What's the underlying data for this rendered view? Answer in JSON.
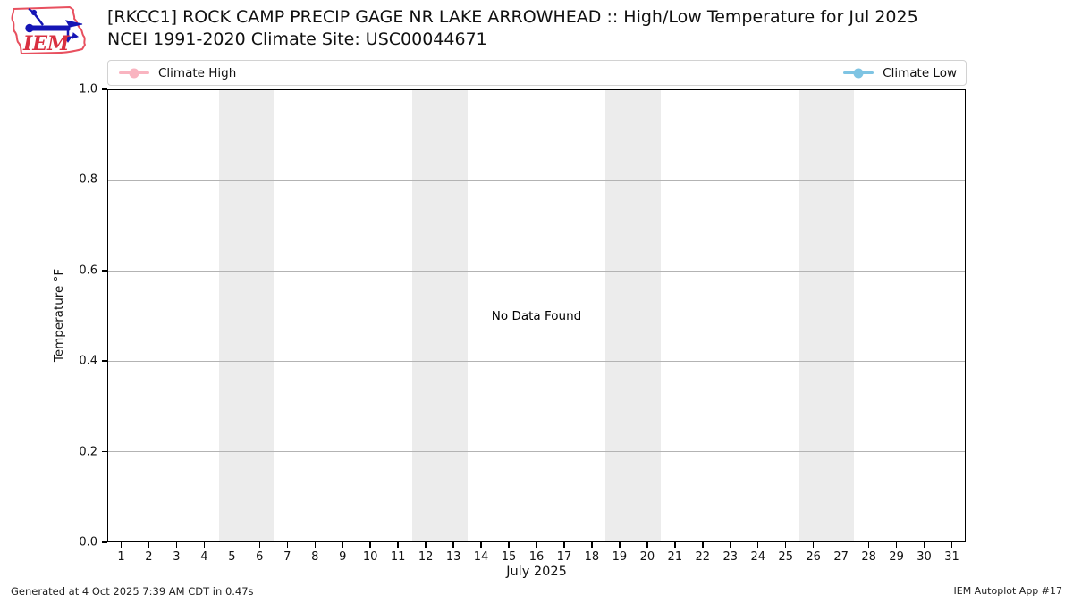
{
  "logo": {
    "text": "IEM"
  },
  "header": {
    "title_line1": "[RKCC1] ROCK CAMP PRECIP GAGE NR LAKE ARROWHEAD :: High/Low Temperature for Jul 2025",
    "title_line2": "NCEI 1991-2020 Climate Site: USC00044671"
  },
  "legend": {
    "entries": [
      {
        "label": "Climate High",
        "color": "#f9b4c0"
      },
      {
        "label": "Climate Low",
        "color": "#7ec4e3"
      }
    ]
  },
  "chart_data": {
    "type": "line",
    "title": "[RKCC1] ROCK CAMP PRECIP GAGE NR LAKE ARROWHEAD :: High/Low Temperature for Jul 2025",
    "subtitle": "NCEI 1991-2020 Climate Site: USC00044671",
    "xlabel": "July 2025",
    "ylabel": "Temperature °F",
    "xlim": [
      0.5,
      31.5
    ],
    "ylim": [
      0.0,
      1.0
    ],
    "x_ticks": [
      1,
      2,
      3,
      4,
      5,
      6,
      7,
      8,
      9,
      10,
      11,
      12,
      13,
      14,
      15,
      16,
      17,
      18,
      19,
      20,
      21,
      22,
      23,
      24,
      25,
      26,
      27,
      28,
      29,
      30,
      31
    ],
    "y_ticks": [
      0.0,
      0.2,
      0.4,
      0.6,
      0.8,
      1.0
    ],
    "y_tick_labels": [
      "0.0",
      "0.2",
      "0.4",
      "0.6",
      "0.8",
      "1.0"
    ],
    "grid": true,
    "gridline_color": "#b3b3b3",
    "legend_position": "top-expanded",
    "series": [
      {
        "name": "Climate High",
        "color": "#f9b4c0",
        "x": [],
        "values": []
      },
      {
        "name": "Climate Low",
        "color": "#7ec4e3",
        "x": [],
        "values": []
      }
    ],
    "no_data_text": "No Data Found",
    "weekend_shading": {
      "color": "#ececec",
      "bands": [
        [
          4.5,
          6.5
        ],
        [
          11.5,
          13.5
        ],
        [
          18.5,
          20.5
        ],
        [
          25.5,
          27.5
        ]
      ]
    }
  },
  "footer": {
    "left": "Generated at 4 Oct 2025 7:39 AM CDT in 0.47s",
    "right": "IEM Autoplot App #17"
  }
}
